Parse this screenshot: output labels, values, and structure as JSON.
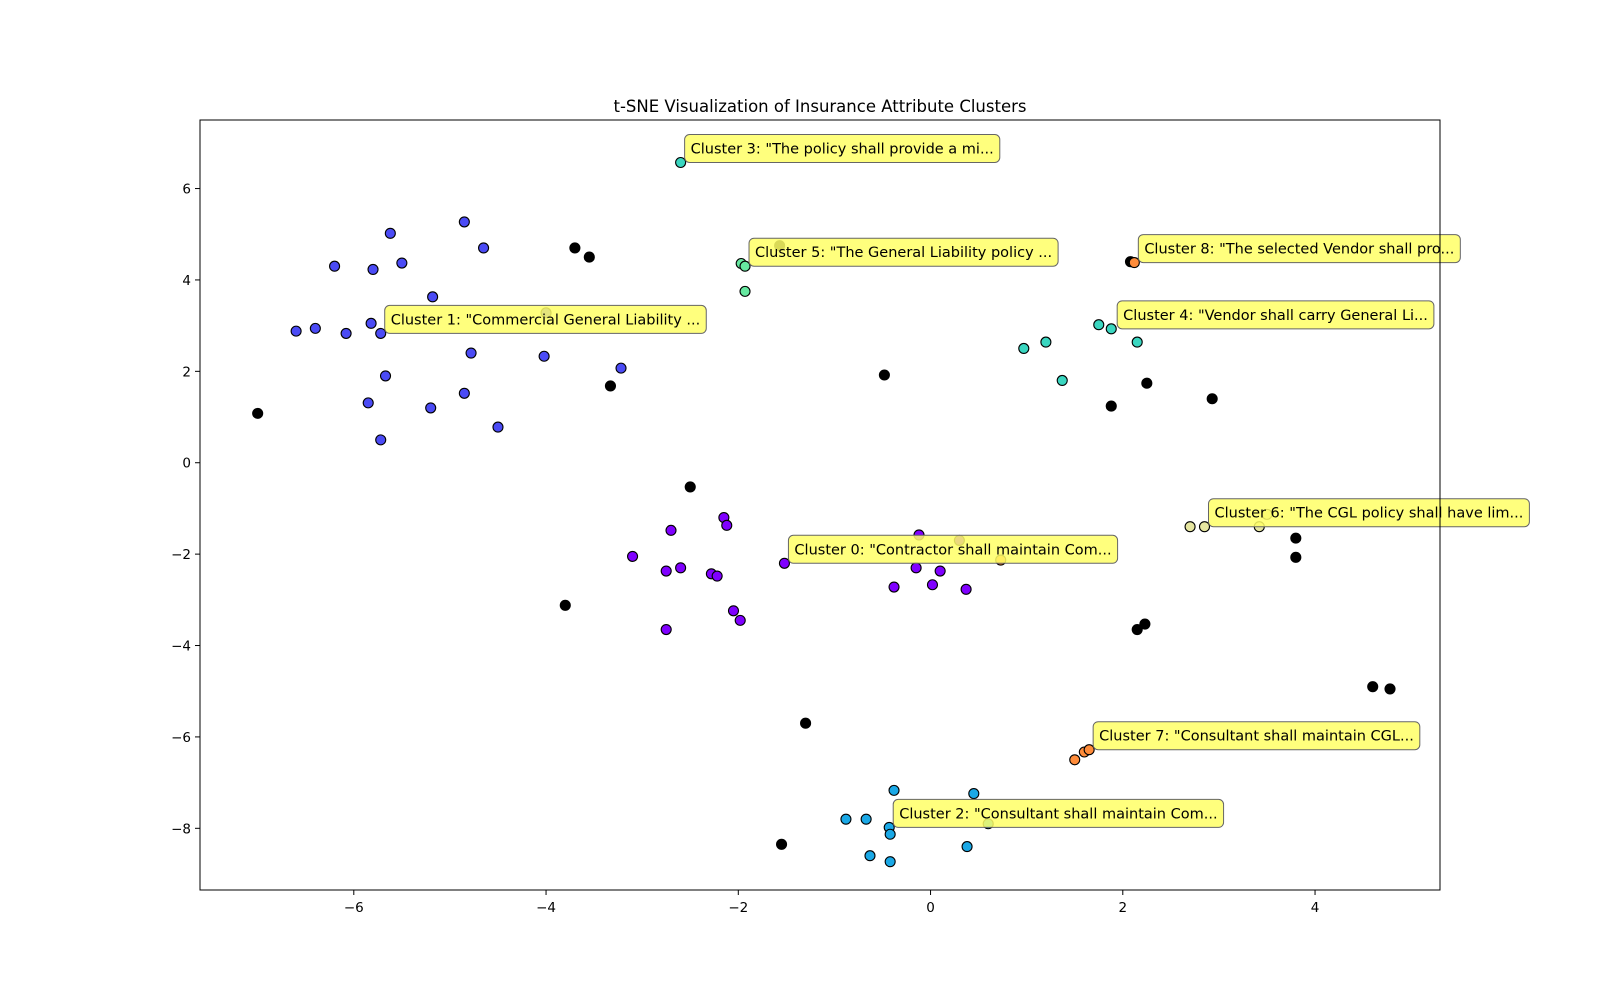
{
  "chart_data": {
    "type": "scatter",
    "title": "t-SNE Visualization of Insurance Attribute Clusters",
    "xlabel": "",
    "ylabel": "",
    "xlim": [
      -7.6,
      5.3
    ],
    "ylim": [
      -9.35,
      7.5
    ],
    "xticks": [
      -6,
      -4,
      -2,
      0,
      2,
      4
    ],
    "yticks": [
      -8,
      -6,
      -4,
      -2,
      0,
      2,
      4,
      6
    ],
    "grid": false,
    "series": [
      {
        "cluster": -1,
        "color": "#000000",
        "points": [
          [
            -7.0,
            1.08
          ],
          [
            -3.7,
            4.7
          ],
          [
            -3.55,
            4.5
          ],
          [
            -3.33,
            1.68
          ],
          [
            -1.57,
            4.75
          ],
          [
            -2.5,
            -0.53
          ],
          [
            -3.8,
            -3.12
          ],
          [
            -1.3,
            -5.7
          ],
          [
            -1.55,
            -8.35
          ],
          [
            -0.48,
            1.92
          ],
          [
            1.88,
            1.24
          ],
          [
            2.25,
            1.74
          ],
          [
            2.93,
            1.4
          ],
          [
            3.8,
            -1.65
          ],
          [
            3.8,
            -2.07
          ],
          [
            2.15,
            -3.65
          ],
          [
            2.23,
            -3.53
          ],
          [
            4.6,
            -4.9
          ],
          [
            4.78,
            -4.95
          ],
          [
            2.08,
            4.4
          ]
        ]
      },
      {
        "cluster": 0,
        "color": "#8000ff",
        "points": [
          [
            -3.1,
            -2.05
          ],
          [
            -2.75,
            -3.65
          ],
          [
            -2.75,
            -2.37
          ],
          [
            -2.7,
            -1.48
          ],
          [
            -2.6,
            -2.3
          ],
          [
            -2.28,
            -2.43
          ],
          [
            -2.22,
            -2.48
          ],
          [
            -2.15,
            -1.2
          ],
          [
            -2.12,
            -1.37
          ],
          [
            -2.05,
            -3.24
          ],
          [
            -1.98,
            -3.45
          ],
          [
            -1.52,
            -2.2
          ],
          [
            -0.38,
            -2.72
          ],
          [
            -0.15,
            -2.3
          ],
          [
            -0.12,
            -1.58
          ],
          [
            0.02,
            -2.67
          ],
          [
            0.1,
            -2.37
          ],
          [
            0.3,
            -1.7
          ],
          [
            0.37,
            -2.77
          ]
        ]
      },
      {
        "cluster": 1,
        "color": "#4b4bf5",
        "points": [
          [
            -6.6,
            2.88
          ],
          [
            -6.4,
            2.94
          ],
          [
            -6.2,
            4.3
          ],
          [
            -6.08,
            2.83
          ],
          [
            -5.85,
            1.31
          ],
          [
            -5.82,
            3.05
          ],
          [
            -5.8,
            4.23
          ],
          [
            -5.72,
            2.83
          ],
          [
            -5.72,
            0.5
          ],
          [
            -5.67,
            1.9
          ],
          [
            -5.62,
            5.02
          ],
          [
            -5.5,
            4.37
          ],
          [
            -5.2,
            1.2
          ],
          [
            -5.18,
            3.63
          ],
          [
            -4.85,
            5.27
          ],
          [
            -4.85,
            1.52
          ],
          [
            -4.78,
            2.4
          ],
          [
            -4.65,
            4.7
          ],
          [
            -4.5,
            0.78
          ],
          [
            -4.02,
            2.33
          ],
          [
            -4.0,
            3.28
          ],
          [
            -3.22,
            2.07
          ]
        ]
      },
      {
        "cluster": 2,
        "color": "#1aa8e6",
        "points": [
          [
            -0.88,
            -7.8
          ],
          [
            -0.67,
            -7.8
          ],
          [
            -0.63,
            -8.6
          ],
          [
            -0.43,
            -7.98
          ],
          [
            -0.42,
            -8.13
          ],
          [
            -0.42,
            -8.73
          ],
          [
            -0.38,
            -7.17
          ],
          [
            0.38,
            -8.4
          ],
          [
            0.45,
            -7.24
          ],
          [
            0.6,
            -7.9
          ]
        ]
      },
      {
        "cluster": 3,
        "color": "#3ad6c0",
        "points": [
          [
            -2.6,
            6.57
          ],
          [
            0.97,
            2.5
          ],
          [
            1.2,
            2.64
          ],
          [
            1.37,
            1.8
          ],
          [
            1.75,
            3.02
          ],
          [
            1.88,
            2.93
          ],
          [
            2.15,
            2.64
          ]
        ]
      },
      {
        "cluster": 4,
        "color": "#66e8a0",
        "points": [
          [
            -1.97,
            4.36
          ],
          [
            -1.93,
            4.3
          ],
          [
            -1.93,
            3.75
          ]
        ]
      },
      {
        "cluster": 5,
        "color": "#e6e6a0",
        "points": [
          [
            2.7,
            -1.4
          ],
          [
            2.85,
            -1.4
          ],
          [
            3.42,
            -1.4
          ],
          [
            3.5,
            -1.13
          ]
        ]
      },
      {
        "cluster": 6,
        "color": "#ff8c3a",
        "points": [
          [
            1.5,
            -6.5
          ],
          [
            1.6,
            -6.33
          ],
          [
            1.65,
            -6.28
          ],
          [
            2.12,
            4.38
          ],
          [
            0.73,
            -2.13
          ]
        ]
      }
    ],
    "annotations": [
      {
        "text": "Cluster 3: \"The policy shall provide a mi...",
        "x": -2.6,
        "y": 6.57
      },
      {
        "text": "Cluster 5: \"The General Liability policy ...",
        "x": -1.93,
        "y": 4.3
      },
      {
        "text": "Cluster 8: \"The selected Vendor shall pro...",
        "x": 2.12,
        "y": 4.38
      },
      {
        "text": "Cluster 4: \"Vendor shall carry General Li...",
        "x": 1.9,
        "y": 2.93
      },
      {
        "text": "Cluster 1: \"Commercial General Liability ...",
        "x": -5.72,
        "y": 2.83
      },
      {
        "text": "Cluster 6: \"The CGL policy shall have lim...",
        "x": 2.85,
        "y": -1.4
      },
      {
        "text": "Cluster 0: \"Contractor shall maintain Com...",
        "x": -1.52,
        "y": -2.2
      },
      {
        "text": "Cluster 7: \"Consultant shall maintain CGL...",
        "x": 1.65,
        "y": -6.28
      },
      {
        "text": "Cluster 2: \"Consultant shall maintain Com...",
        "x": -0.43,
        "y": -7.98
      }
    ],
    "annotation_style": {
      "fill": "#ffff66",
      "edge": "#666666",
      "opacity": 0.85
    }
  }
}
